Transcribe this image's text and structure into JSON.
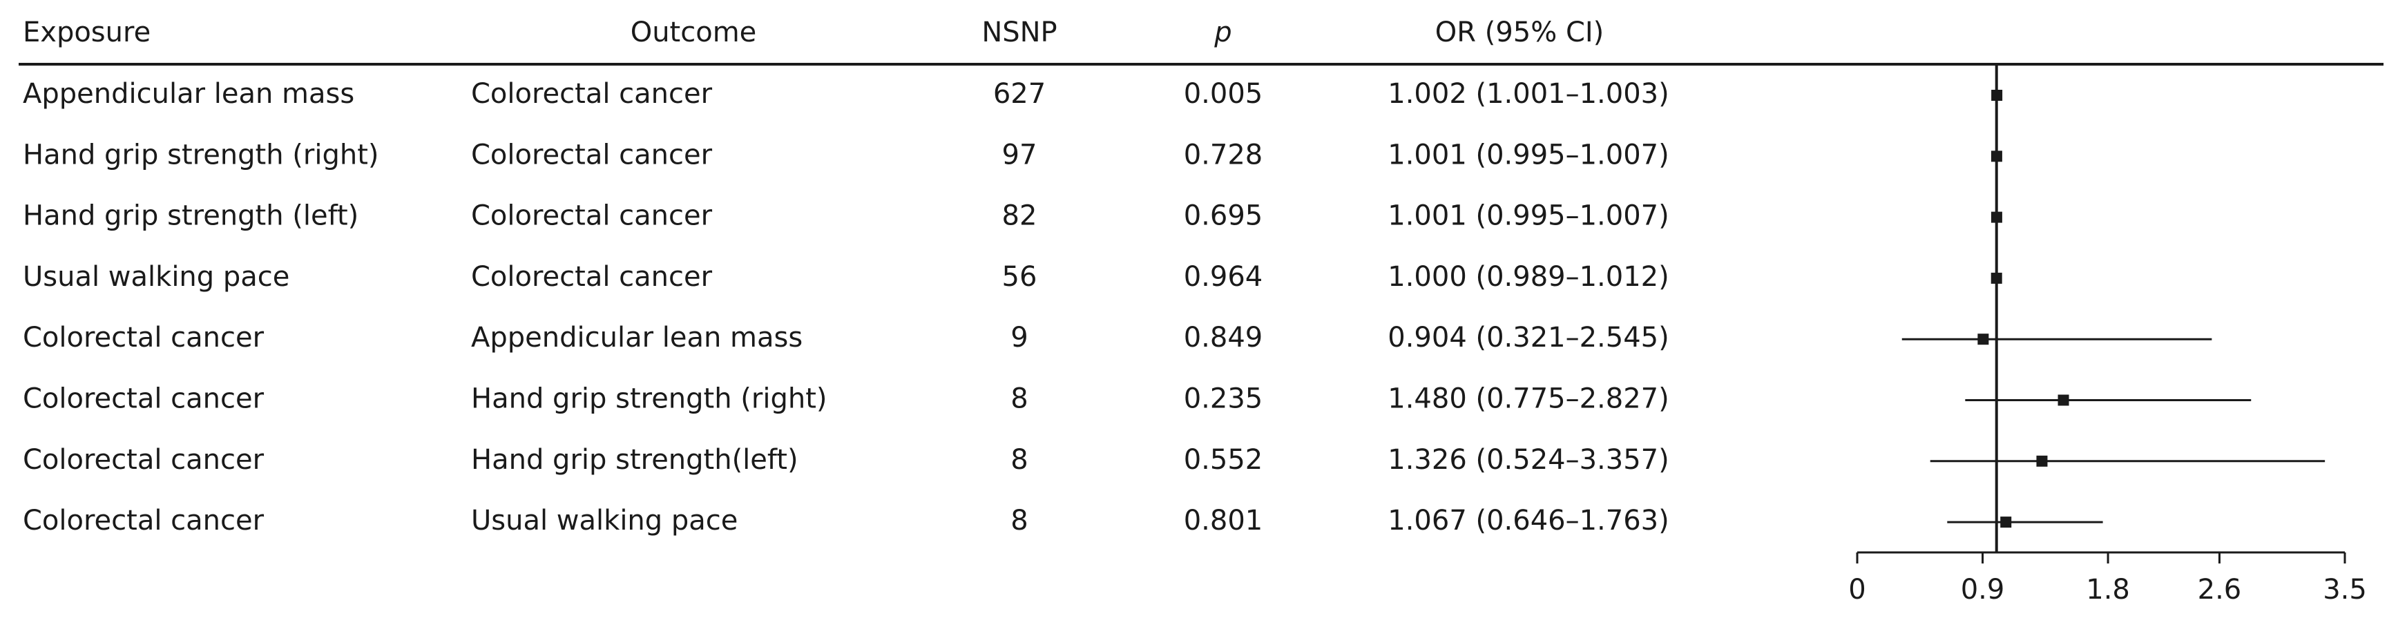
{
  "chart_data": {
    "type": "forest",
    "columns": [
      "Exposure",
      "Outcome",
      "NSNP",
      "p",
      "OR (95% CI)"
    ],
    "exposures": [
      "Appendicular lean mass",
      "Hand grip strength (right)",
      "Hand grip strength (left)",
      "Usual walking pace",
      "Colorectal cancer",
      "Colorectal cancer",
      "Colorectal cancer",
      "Colorectal cancer"
    ],
    "outcomes": [
      "Colorectal cancer",
      "Colorectal cancer",
      "Colorectal cancer",
      "Colorectal cancer",
      "Appendicular lean mass",
      "Hand grip strength (right)",
      "Hand grip strength(left)",
      "Usual walking pace"
    ],
    "nsnp": [
      627,
      97,
      82,
      56,
      9,
      8,
      8,
      8
    ],
    "p": [
      0.005,
      0.728,
      0.695,
      0.964,
      0.849,
      0.235,
      0.552,
      0.801
    ],
    "values": [
      1.002,
      1.001,
      1.001,
      1.0,
      0.904,
      1.48,
      1.326,
      1.067
    ],
    "lower": [
      1.001,
      0.995,
      0.995,
      0.989,
      0.321,
      0.775,
      0.524,
      0.646
    ],
    "upper": [
      1.003,
      1.007,
      1.007,
      1.012,
      2.545,
      2.827,
      3.357,
      1.763
    ],
    "value_labels": [
      "1.002 (1.001–1.003)",
      "1.001 (0.995–1.007)",
      "1.001 (0.995–1.007)",
      "1.000 (0.989–1.012)",
      "0.904 (0.321–2.545)",
      "1.480 (0.775–2.827)",
      "1.326 (0.524–3.357)",
      "1.067 (0.646–1.763)"
    ],
    "reference_line": 1,
    "color": "#1a1a1a",
    "xlim": [
      0,
      3.5
    ],
    "xticks": [
      0,
      0.9,
      1.8,
      2.6,
      3.5
    ]
  }
}
